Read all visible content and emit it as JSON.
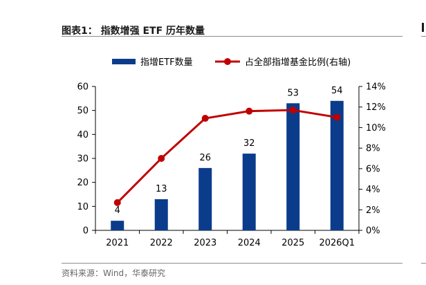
{
  "header": {
    "title": "图表1：  指数增强 ETF 历年数量"
  },
  "footer": {
    "source": "资料来源：Wind，华泰研究"
  },
  "colors": {
    "bar": "#0b3c8c",
    "line": "#c00000",
    "rule": "#8c8c8c"
  },
  "chart_data": {
    "type": "bar",
    "categories": [
      "2021",
      "2022",
      "2023",
      "2024",
      "2025",
      "2026Q1"
    ],
    "series": [
      {
        "name": "指增ETF数量",
        "type": "bar",
        "axis": "left",
        "values": [
          4,
          13,
          26,
          32,
          53,
          54
        ]
      },
      {
        "name": "占全部指增基金比例(右轴)",
        "type": "line",
        "axis": "right",
        "values": [
          0.027,
          0.07,
          0.109,
          0.116,
          0.117,
          0.11
        ]
      }
    ],
    "y_left": {
      "ylim": [
        0,
        60
      ],
      "ticks": [
        "0",
        "10",
        "20",
        "30",
        "40",
        "50",
        "60"
      ]
    },
    "y_right": {
      "ylim": [
        0,
        0.14
      ],
      "ticks": [
        "0%",
        "2%",
        "4%",
        "6%",
        "8%",
        "10%",
        "12%",
        "14%"
      ]
    },
    "legend": "top-center",
    "grid": false
  }
}
